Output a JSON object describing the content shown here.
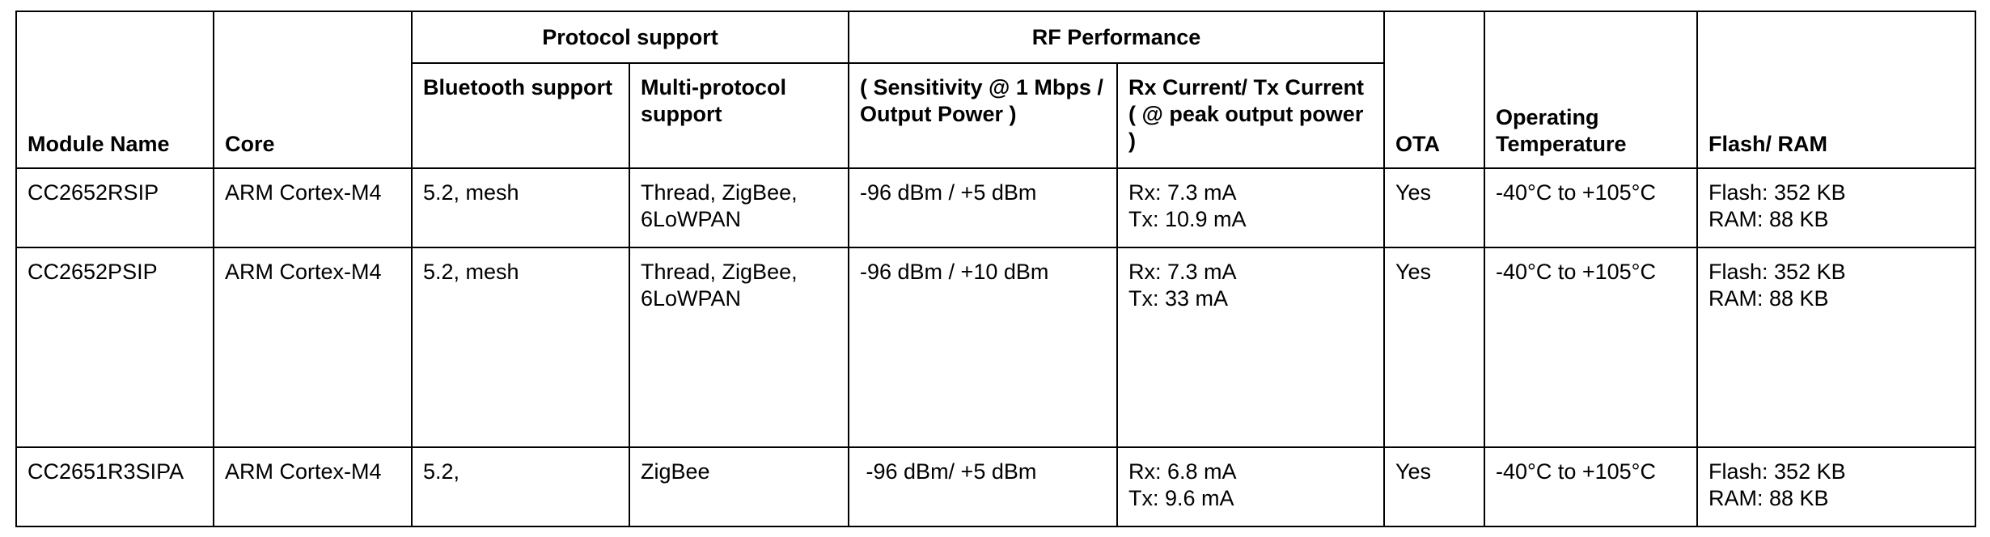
{
  "table": {
    "group_headers": {
      "protocol_support": "Protocol support",
      "rf_performance": "RF Performance"
    },
    "headers": {
      "module_name": "Module Name",
      "core": "Core",
      "bluetooth_support": "Bluetooth support",
      "multi_protocol_support": "Multi-protocol support",
      "sensitivity_output_power": "( Sensitivity @ 1 Mbps / Output Power )",
      "rx_tx_current": "Rx Current/ Tx Current ( @ peak output power )",
      "ota": "OTA",
      "operating_temperature": "Operating Temperature",
      "flash_ram": "Flash/ RAM"
    },
    "rows": [
      {
        "module_name": "CC2652RSIP",
        "core": "ARM Cortex-M4",
        "bluetooth": "5.2, mesh",
        "multi_protocol": "Thread, ZigBee, 6LoWPAN",
        "sensitivity_power": "-96 dBm / +5 dBm",
        "rx_current": "Rx: 7.3 mA",
        "tx_current": "Tx: 10.9 mA",
        "ota": "Yes",
        "temperature": "-40°C to +105°C",
        "flash": "Flash: 352 KB",
        "ram": "RAM: 88 KB"
      },
      {
        "module_name": "CC2652PSIP",
        "core": "ARM Cortex-M4",
        "bluetooth": "5.2, mesh",
        "multi_protocol": "Thread, ZigBee, 6LoWPAN",
        "sensitivity_power": "-96 dBm / +10 dBm",
        "rx_current": "Rx: 7.3 mA",
        "tx_current": "Tx: 33 mA",
        "ota": "Yes",
        "temperature": "-40°C to +105°C",
        "flash": "Flash: 352 KB",
        "ram": "RAM: 88 KB"
      },
      {
        "module_name": "CC2651R3SIPA",
        "core": "ARM Cortex-M4",
        "bluetooth": "5.2,",
        "multi_protocol": "ZigBee",
        "sensitivity_power": " -96 dBm/ +5 dBm",
        "rx_current": "Rx: 6.8 mA",
        "tx_current": "Tx: 9.6 mA",
        "ota": "Yes",
        "temperature": "-40°C to +105°C",
        "flash": "Flash: 352 KB",
        "ram": "RAM: 88 KB"
      }
    ]
  }
}
